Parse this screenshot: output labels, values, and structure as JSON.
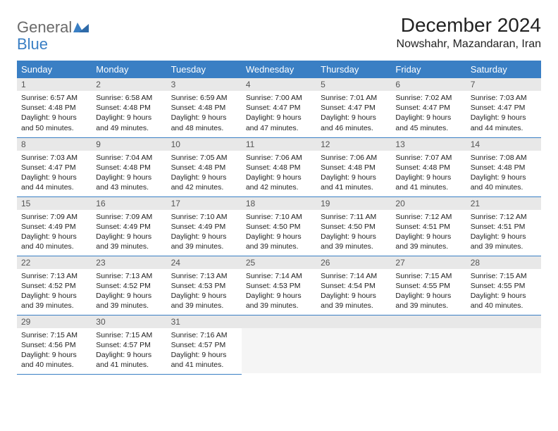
{
  "logo": {
    "text1": "General",
    "text2": "Blue",
    "shape_color": "#3a7fc4"
  },
  "title": "December 2024",
  "location": "Nowshahr, Mazandaran, Iran",
  "colors": {
    "header_bg": "#3a7fc4",
    "header_text": "#ffffff",
    "daynum_bg": "#e8e8e8",
    "row_divider": "#3a7fc4",
    "body_text": "#222222"
  },
  "weekdays": [
    "Sunday",
    "Monday",
    "Tuesday",
    "Wednesday",
    "Thursday",
    "Friday",
    "Saturday"
  ],
  "weeks": [
    [
      {
        "n": "1",
        "sunrise": "6:57 AM",
        "sunset": "4:48 PM",
        "daylight": "9 hours and 50 minutes."
      },
      {
        "n": "2",
        "sunrise": "6:58 AM",
        "sunset": "4:48 PM",
        "daylight": "9 hours and 49 minutes."
      },
      {
        "n": "3",
        "sunrise": "6:59 AM",
        "sunset": "4:48 PM",
        "daylight": "9 hours and 48 minutes."
      },
      {
        "n": "4",
        "sunrise": "7:00 AM",
        "sunset": "4:47 PM",
        "daylight": "9 hours and 47 minutes."
      },
      {
        "n": "5",
        "sunrise": "7:01 AM",
        "sunset": "4:47 PM",
        "daylight": "9 hours and 46 minutes."
      },
      {
        "n": "6",
        "sunrise": "7:02 AM",
        "sunset": "4:47 PM",
        "daylight": "9 hours and 45 minutes."
      },
      {
        "n": "7",
        "sunrise": "7:03 AM",
        "sunset": "4:47 PM",
        "daylight": "9 hours and 44 minutes."
      }
    ],
    [
      {
        "n": "8",
        "sunrise": "7:03 AM",
        "sunset": "4:47 PM",
        "daylight": "9 hours and 44 minutes."
      },
      {
        "n": "9",
        "sunrise": "7:04 AM",
        "sunset": "4:48 PM",
        "daylight": "9 hours and 43 minutes."
      },
      {
        "n": "10",
        "sunrise": "7:05 AM",
        "sunset": "4:48 PM",
        "daylight": "9 hours and 42 minutes."
      },
      {
        "n": "11",
        "sunrise": "7:06 AM",
        "sunset": "4:48 PM",
        "daylight": "9 hours and 42 minutes."
      },
      {
        "n": "12",
        "sunrise": "7:06 AM",
        "sunset": "4:48 PM",
        "daylight": "9 hours and 41 minutes."
      },
      {
        "n": "13",
        "sunrise": "7:07 AM",
        "sunset": "4:48 PM",
        "daylight": "9 hours and 41 minutes."
      },
      {
        "n": "14",
        "sunrise": "7:08 AM",
        "sunset": "4:48 PM",
        "daylight": "9 hours and 40 minutes."
      }
    ],
    [
      {
        "n": "15",
        "sunrise": "7:09 AM",
        "sunset": "4:49 PM",
        "daylight": "9 hours and 40 minutes."
      },
      {
        "n": "16",
        "sunrise": "7:09 AM",
        "sunset": "4:49 PM",
        "daylight": "9 hours and 39 minutes."
      },
      {
        "n": "17",
        "sunrise": "7:10 AM",
        "sunset": "4:49 PM",
        "daylight": "9 hours and 39 minutes."
      },
      {
        "n": "18",
        "sunrise": "7:10 AM",
        "sunset": "4:50 PM",
        "daylight": "9 hours and 39 minutes."
      },
      {
        "n": "19",
        "sunrise": "7:11 AM",
        "sunset": "4:50 PM",
        "daylight": "9 hours and 39 minutes."
      },
      {
        "n": "20",
        "sunrise": "7:12 AM",
        "sunset": "4:51 PM",
        "daylight": "9 hours and 39 minutes."
      },
      {
        "n": "21",
        "sunrise": "7:12 AM",
        "sunset": "4:51 PM",
        "daylight": "9 hours and 39 minutes."
      }
    ],
    [
      {
        "n": "22",
        "sunrise": "7:13 AM",
        "sunset": "4:52 PM",
        "daylight": "9 hours and 39 minutes."
      },
      {
        "n": "23",
        "sunrise": "7:13 AM",
        "sunset": "4:52 PM",
        "daylight": "9 hours and 39 minutes."
      },
      {
        "n": "24",
        "sunrise": "7:13 AM",
        "sunset": "4:53 PM",
        "daylight": "9 hours and 39 minutes."
      },
      {
        "n": "25",
        "sunrise": "7:14 AM",
        "sunset": "4:53 PM",
        "daylight": "9 hours and 39 minutes."
      },
      {
        "n": "26",
        "sunrise": "7:14 AM",
        "sunset": "4:54 PM",
        "daylight": "9 hours and 39 minutes."
      },
      {
        "n": "27",
        "sunrise": "7:15 AM",
        "sunset": "4:55 PM",
        "daylight": "9 hours and 39 minutes."
      },
      {
        "n": "28",
        "sunrise": "7:15 AM",
        "sunset": "4:55 PM",
        "daylight": "9 hours and 40 minutes."
      }
    ],
    [
      {
        "n": "29",
        "sunrise": "7:15 AM",
        "sunset": "4:56 PM",
        "daylight": "9 hours and 40 minutes."
      },
      {
        "n": "30",
        "sunrise": "7:15 AM",
        "sunset": "4:57 PM",
        "daylight": "9 hours and 41 minutes."
      },
      {
        "n": "31",
        "sunrise": "7:16 AM",
        "sunset": "4:57 PM",
        "daylight": "9 hours and 41 minutes."
      },
      null,
      null,
      null,
      null
    ]
  ],
  "labels": {
    "sunrise_prefix": "Sunrise: ",
    "sunset_prefix": "Sunset: ",
    "daylight_prefix": "Daylight: "
  }
}
